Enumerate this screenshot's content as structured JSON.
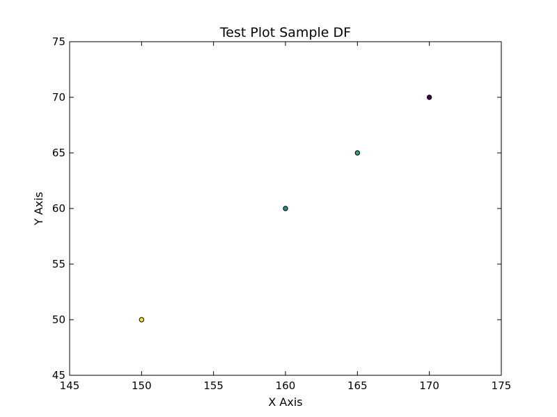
{
  "chart_data": {
    "type": "scatter",
    "title": "Test Plot Sample DF",
    "xlabel": "X Axis",
    "ylabel": "Y Axis",
    "xlim": [
      145,
      175
    ],
    "ylim": [
      45,
      75
    ],
    "xticks": [
      145,
      150,
      155,
      160,
      165,
      170,
      175
    ],
    "yticks": [
      45,
      50,
      55,
      60,
      65,
      70,
      75
    ],
    "grid": false,
    "points": [
      {
        "x": 150,
        "y": 50,
        "color": "#fde725"
      },
      {
        "x": 160,
        "y": 60,
        "color": "#21918c"
      },
      {
        "x": 165,
        "y": 65,
        "color": "#27a583"
      },
      {
        "x": 170,
        "y": 70,
        "color": "#440154"
      }
    ]
  }
}
